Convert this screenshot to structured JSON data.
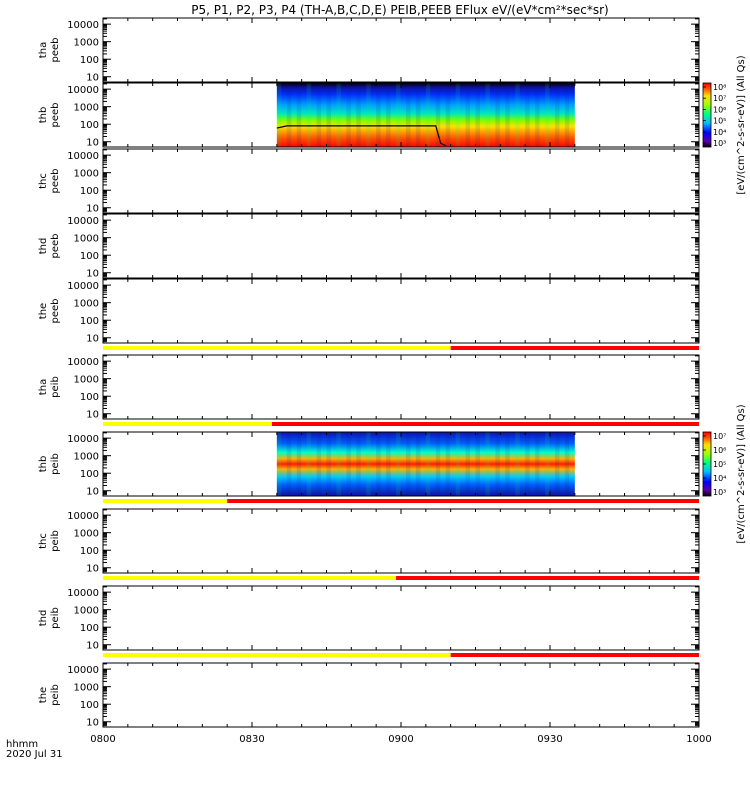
{
  "chart_data": {
    "type": "heatmap",
    "title": "P5, P1, P2, P3, P4 (TH-A,B,C,D,E) PEIB,PEEB EFlux eV/(eV*cm²*sec*sr)",
    "x_axis": {
      "ticks": [
        "0800",
        "0830",
        "0900",
        "0930",
        "1000"
      ],
      "range_minutes": [
        480,
        600
      ],
      "label_line1": "hhmm",
      "label_line2": "2020 Jul 31"
    },
    "y_ticks": [
      "10000",
      "1000",
      "100",
      "10"
    ],
    "y_log_range": [
      0.7,
      4.35
    ],
    "colorbars": [
      {
        "panel": "thb-peeb",
        "label": "[eV/(cm^2-s-sr-eV)] (All Qs)",
        "ticks": [
          "10⁸",
          "10⁷",
          "10⁶",
          "10⁵",
          "10⁴",
          "10³"
        ]
      },
      {
        "panel": "thb-peib",
        "label": "[eV/(cm^2-s-sr-eV)] (All Qs)",
        "ticks": [
          "10⁷",
          "10⁶",
          "10⁵",
          "10⁴",
          "10³"
        ]
      }
    ],
    "panels": [
      {
        "id": "tha-peeb",
        "l1": "tha",
        "l2": "peeb",
        "has_data": false,
        "mode_bar": null
      },
      {
        "id": "thb-peeb",
        "l1": "thb",
        "l2": "peeb",
        "has_data": true,
        "data_range_minutes": [
          515,
          575
        ],
        "mode_bar": null,
        "energy_line": {
          "x": [
            515,
            517,
            528,
            547,
            548,
            549
          ],
          "y": [
            60,
            80,
            80,
            80,
            8,
            6
          ]
        }
      },
      {
        "id": "thc-peeb",
        "l1": "thc",
        "l2": "peeb",
        "has_data": false,
        "mode_bar": null
      },
      {
        "id": "thd-peeb",
        "l1": "thd",
        "l2": "peeb",
        "has_data": false,
        "mode_bar": null
      },
      {
        "id": "the-peeb",
        "l1": "the",
        "l2": "peeb",
        "has_data": false,
        "mode_bar": {
          "yellow_until_minutes": 550
        }
      },
      {
        "id": "tha-peib",
        "l1": "tha",
        "l2": "peib",
        "has_data": false,
        "mode_bar": {
          "yellow_until_minutes": 514
        }
      },
      {
        "id": "thb-peib",
        "l1": "thb",
        "l2": "peib",
        "has_data": true,
        "data_range_minutes": [
          515,
          575
        ],
        "mode_bar": {
          "yellow_until_minutes": 505
        }
      },
      {
        "id": "thc-peib",
        "l1": "thc",
        "l2": "peib",
        "has_data": false,
        "mode_bar": {
          "yellow_until_minutes": 539
        }
      },
      {
        "id": "thd-peib",
        "l1": "thd",
        "l2": "peib",
        "has_data": false,
        "mode_bar": {
          "yellow_until_minutes": 550
        }
      },
      {
        "id": "the-peib",
        "l1": "the",
        "l2": "peib",
        "has_data": false,
        "mode_bar": null
      }
    ]
  }
}
